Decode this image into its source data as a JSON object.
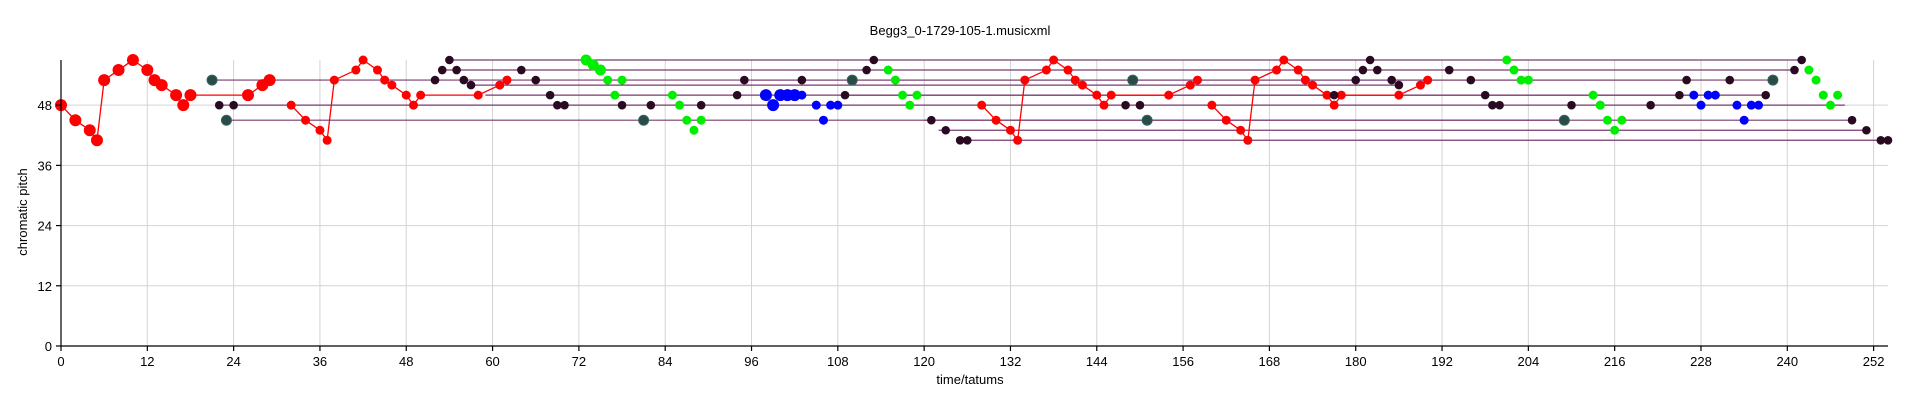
{
  "chart_data": {
    "type": "scatter",
    "title": "Begg3_0-1729-105-1.musicxml",
    "xlabel": "time/tatums",
    "ylabel": "chromatic pitch",
    "xlim": [
      0,
      254
    ],
    "ylim": [
      0,
      57
    ],
    "xticks": [
      0,
      12,
      24,
      36,
      48,
      60,
      72,
      84,
      96,
      108,
      120,
      132,
      144,
      156,
      168,
      180,
      192,
      204,
      216,
      228,
      240,
      252
    ],
    "yticks": [
      0,
      12,
      24,
      36,
      48
    ],
    "grid": true,
    "colors": {
      "red": "#ff0000",
      "dark": "#2a0a22",
      "green": "#00ee00",
      "blue": "#0000ff",
      "teal": "#2c4a48",
      "sustain_line": "#7a3a6e",
      "teal_line": "#2f6a62"
    },
    "red_path": [
      [
        0,
        48
      ],
      [
        2,
        45
      ],
      [
        4,
        43
      ],
      [
        5,
        41
      ],
      [
        6,
        53
      ],
      [
        8,
        55
      ],
      [
        10,
        57
      ],
      [
        12,
        55
      ],
      [
        13,
        53
      ],
      [
        14,
        52
      ],
      [
        16,
        50
      ],
      [
        17,
        48
      ],
      [
        18,
        50
      ],
      [
        26,
        50
      ],
      [
        28,
        52
      ],
      [
        29,
        53
      ],
      [
        32,
        48
      ],
      [
        34,
        45
      ],
      [
        36,
        43
      ],
      [
        37,
        41
      ],
      [
        38,
        53
      ],
      [
        41,
        55
      ],
      [
        42,
        57
      ],
      [
        44,
        55
      ],
      [
        45,
        53
      ],
      [
        46,
        52
      ],
      [
        48,
        50
      ],
      [
        49,
        48
      ],
      [
        50,
        50
      ],
      [
        58,
        50
      ],
      [
        61,
        52
      ],
      [
        62,
        53
      ],
      [
        128,
        48
      ],
      [
        130,
        45
      ],
      [
        132,
        43
      ],
      [
        133,
        41
      ],
      [
        134,
        53
      ],
      [
        137,
        55
      ],
      [
        138,
        57
      ],
      [
        140,
        55
      ],
      [
        141,
        53
      ],
      [
        142,
        52
      ],
      [
        144,
        50
      ],
      [
        145,
        48
      ],
      [
        146,
        50
      ],
      [
        154,
        50
      ],
      [
        157,
        52
      ],
      [
        158,
        53
      ],
      [
        160,
        48
      ],
      [
        162,
        45
      ],
      [
        164,
        43
      ],
      [
        165,
        41
      ],
      [
        166,
        53
      ],
      [
        169,
        55
      ],
      [
        170,
        57
      ],
      [
        172,
        55
      ],
      [
        173,
        53
      ],
      [
        174,
        52
      ],
      [
        176,
        50
      ],
      [
        177,
        48
      ],
      [
        178,
        50
      ],
      [
        186,
        50
      ],
      [
        189,
        52
      ],
      [
        190,
        53
      ]
    ],
    "red_big": [
      [
        0,
        48
      ],
      [
        2,
        45
      ],
      [
        4,
        43
      ],
      [
        5,
        41
      ],
      [
        6,
        53
      ],
      [
        8,
        55
      ],
      [
        10,
        57
      ],
      [
        12,
        55
      ],
      [
        13,
        53
      ],
      [
        14,
        52
      ],
      [
        16,
        50
      ],
      [
        17,
        48
      ],
      [
        18,
        50
      ],
      [
        26,
        50
      ],
      [
        28,
        52
      ],
      [
        29,
        53
      ]
    ],
    "dark_points": [
      [
        22,
        48
      ],
      [
        24,
        48
      ],
      [
        52,
        53
      ],
      [
        53,
        55
      ],
      [
        54,
        57
      ],
      [
        55,
        55
      ],
      [
        56,
        53
      ],
      [
        57,
        52
      ],
      [
        64,
        55
      ],
      [
        66,
        53
      ],
      [
        68,
        50
      ],
      [
        69,
        48
      ],
      [
        70,
        48
      ],
      [
        78,
        48
      ],
      [
        82,
        48
      ],
      [
        89,
        48
      ],
      [
        94,
        50
      ],
      [
        95,
        53
      ],
      [
        103,
        53
      ],
      [
        109,
        50
      ],
      [
        112,
        55
      ],
      [
        113,
        57
      ],
      [
        121,
        45
      ],
      [
        123,
        43
      ],
      [
        125,
        41
      ],
      [
        126,
        41
      ],
      [
        148,
        48
      ],
      [
        150,
        48
      ],
      [
        177,
        50
      ],
      [
        180,
        53
      ],
      [
        181,
        55
      ],
      [
        182,
        57
      ],
      [
        183,
        55
      ],
      [
        185,
        53
      ],
      [
        186,
        52
      ],
      [
        193,
        55
      ],
      [
        196,
        53
      ],
      [
        198,
        50
      ],
      [
        199,
        48
      ],
      [
        200,
        48
      ],
      [
        210,
        48
      ],
      [
        214,
        48
      ],
      [
        221,
        48
      ],
      [
        225,
        50
      ],
      [
        226,
        53
      ],
      [
        232,
        53
      ],
      [
        237,
        50
      ],
      [
        241,
        55
      ],
      [
        242,
        57
      ],
      [
        249,
        45
      ],
      [
        251,
        43
      ],
      [
        253,
        41
      ],
      [
        254,
        41
      ]
    ],
    "teal_points": [
      [
        21,
        53
      ],
      [
        23,
        45
      ],
      [
        81,
        45
      ],
      [
        110,
        53
      ],
      [
        149,
        53
      ],
      [
        151,
        45
      ],
      [
        209,
        45
      ],
      [
        238,
        53
      ]
    ],
    "green_points": [
      [
        73,
        57
      ],
      [
        74,
        56
      ],
      [
        75,
        55
      ],
      [
        76,
        53
      ],
      [
        77,
        50
      ],
      [
        78,
        53
      ],
      [
        85,
        50
      ],
      [
        86,
        48
      ],
      [
        87,
        45
      ],
      [
        88,
        43
      ],
      [
        89,
        45
      ],
      [
        115,
        55
      ],
      [
        116,
        53
      ],
      [
        117,
        50
      ],
      [
        118,
        48
      ],
      [
        119,
        50
      ],
      [
        201,
        57
      ],
      [
        202,
        55
      ],
      [
        203,
        53
      ],
      [
        204,
        53
      ],
      [
        213,
        50
      ],
      [
        214,
        48
      ],
      [
        215,
        45
      ],
      [
        216,
        43
      ],
      [
        217,
        45
      ],
      [
        243,
        55
      ],
      [
        244,
        53
      ],
      [
        245,
        50
      ],
      [
        246,
        48
      ],
      [
        247,
        50
      ]
    ],
    "blue_points": [
      [
        98,
        50
      ],
      [
        99,
        48
      ],
      [
        100,
        50
      ],
      [
        101,
        50
      ],
      [
        102,
        50
      ],
      [
        103,
        50
      ],
      [
        105,
        48
      ],
      [
        106,
        45
      ],
      [
        107,
        48
      ],
      [
        108,
        48
      ],
      [
        227,
        50
      ],
      [
        228,
        48
      ],
      [
        229,
        50
      ],
      [
        230,
        50
      ],
      [
        233,
        48
      ],
      [
        234,
        45
      ],
      [
        235,
        48
      ],
      [
        236,
        48
      ]
    ],
    "sustain_lines": [
      [
        21,
        53,
        238,
        53
      ],
      [
        22,
        48,
        248,
        48
      ],
      [
        23,
        45,
        209,
        45
      ],
      [
        53,
        55,
        241,
        55
      ],
      [
        54,
        57,
        242,
        57
      ],
      [
        57,
        52,
        186,
        52
      ],
      [
        59,
        50,
        228,
        50
      ],
      [
        96,
        53,
        226,
        53
      ],
      [
        109,
        50,
        237,
        50
      ],
      [
        120,
        45,
        249,
        45
      ],
      [
        122,
        43,
        251,
        43
      ],
      [
        125,
        41,
        254,
        41
      ]
    ]
  }
}
